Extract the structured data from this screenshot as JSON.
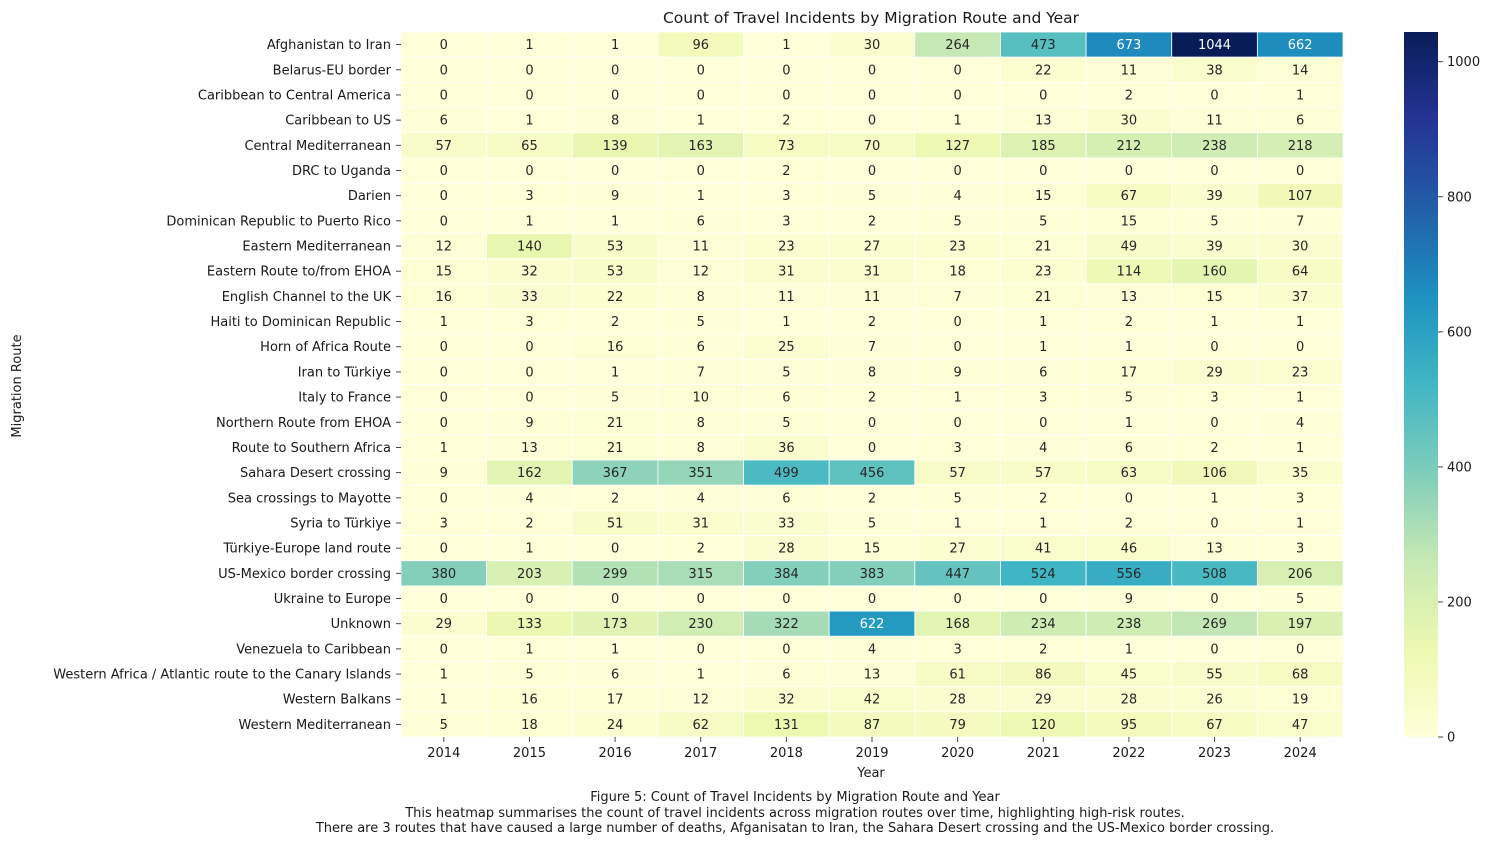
{
  "chart_data": {
    "type": "heatmap",
    "title": "Count of Travel Incidents by Migration Route and Year",
    "xlabel": "Year",
    "ylabel": "Migration Route",
    "x": [
      "2014",
      "2015",
      "2016",
      "2017",
      "2018",
      "2019",
      "2020",
      "2021",
      "2022",
      "2023",
      "2024"
    ],
    "y": [
      "Afghanistan to Iran",
      "Belarus-EU border",
      "Caribbean to Central America",
      "Caribbean to US",
      "Central Mediterranean",
      "DRC to Uganda",
      "Darien",
      "Dominican Republic to Puerto Rico",
      "Eastern Mediterranean",
      "Eastern Route to/from EHOA",
      "English Channel to the UK",
      "Haiti to Dominican Republic",
      "Horn of Africa Route",
      "Iran to Türkiye",
      "Italy to France",
      "Northern Route from EHOA",
      "Route to Southern Africa",
      "Sahara Desert crossing",
      "Sea crossings to Mayotte",
      "Syria to Türkiye",
      "Türkiye-Europe land route",
      "US-Mexico border crossing",
      "Ukraine to Europe",
      "Unknown",
      "Venezuela to Caribbean",
      "Western Africa / Atlantic route to the Canary Islands",
      "Western Balkans",
      "Western Mediterranean"
    ],
    "values": [
      [
        0,
        1,
        1,
        96,
        1,
        30,
        264,
        473,
        673,
        1044,
        662
      ],
      [
        0,
        0,
        0,
        0,
        0,
        0,
        0,
        22,
        11,
        38,
        14
      ],
      [
        0,
        0,
        0,
        0,
        0,
        0,
        0,
        0,
        2,
        0,
        1
      ],
      [
        6,
        1,
        8,
        1,
        2,
        0,
        1,
        13,
        30,
        11,
        6
      ],
      [
        57,
        65,
        139,
        163,
        73,
        70,
        127,
        185,
        212,
        238,
        218
      ],
      [
        0,
        0,
        0,
        0,
        2,
        0,
        0,
        0,
        0,
        0,
        0
      ],
      [
        0,
        3,
        9,
        1,
        3,
        5,
        4,
        15,
        67,
        39,
        107
      ],
      [
        0,
        1,
        1,
        6,
        3,
        2,
        5,
        5,
        15,
        5,
        7
      ],
      [
        12,
        140,
        53,
        11,
        23,
        27,
        23,
        21,
        49,
        39,
        30
      ],
      [
        15,
        32,
        53,
        12,
        31,
        31,
        18,
        23,
        114,
        160,
        64
      ],
      [
        16,
        33,
        22,
        8,
        11,
        11,
        7,
        21,
        13,
        15,
        37
      ],
      [
        1,
        3,
        2,
        5,
        1,
        2,
        0,
        1,
        2,
        1,
        1
      ],
      [
        0,
        0,
        16,
        6,
        25,
        7,
        0,
        1,
        1,
        0,
        0
      ],
      [
        0,
        0,
        1,
        7,
        5,
        8,
        9,
        6,
        17,
        29,
        23
      ],
      [
        0,
        0,
        5,
        10,
        6,
        2,
        1,
        3,
        5,
        3,
        1
      ],
      [
        0,
        9,
        21,
        8,
        5,
        0,
        0,
        0,
        1,
        0,
        4
      ],
      [
        1,
        13,
        21,
        8,
        36,
        0,
        3,
        4,
        6,
        2,
        1
      ],
      [
        9,
        162,
        367,
        351,
        499,
        456,
        57,
        57,
        63,
        106,
        35
      ],
      [
        0,
        4,
        2,
        4,
        6,
        2,
        5,
        2,
        0,
        1,
        3
      ],
      [
        3,
        2,
        51,
        31,
        33,
        5,
        1,
        1,
        2,
        0,
        1
      ],
      [
        0,
        1,
        0,
        2,
        28,
        15,
        27,
        41,
        46,
        13,
        3
      ],
      [
        380,
        203,
        299,
        315,
        384,
        383,
        447,
        524,
        556,
        508,
        206
      ],
      [
        0,
        0,
        0,
        0,
        0,
        0,
        0,
        0,
        9,
        0,
        5
      ],
      [
        29,
        133,
        173,
        230,
        322,
        622,
        168,
        234,
        238,
        269,
        197
      ],
      [
        0,
        1,
        1,
        0,
        0,
        4,
        3,
        2,
        1,
        0,
        0
      ],
      [
        1,
        5,
        6,
        1,
        6,
        13,
        61,
        86,
        45,
        55,
        68
      ],
      [
        1,
        16,
        17,
        12,
        32,
        42,
        28,
        29,
        28,
        26,
        19
      ],
      [
        5,
        18,
        24,
        62,
        131,
        87,
        79,
        120,
        95,
        67,
        47
      ]
    ],
    "colormap": "YlGnBu",
    "vmin": 0,
    "vmax": 1044,
    "colorbar_ticks": [
      0,
      200,
      400,
      600,
      800,
      1000
    ],
    "annotated": true,
    "grid": false
  },
  "caption": {
    "line1": "Figure 5: Count of Travel Incidents by Migration Route and Year",
    "line2": "This heatmap summarises the count of travel incidents across migration routes over time, highlighting high-risk routes.",
    "line3": "There are 3 routes that have caused a large number of deaths, Afganisatan to Iran, the Sahara Desert crossing and the US-Mexico border crossing."
  }
}
